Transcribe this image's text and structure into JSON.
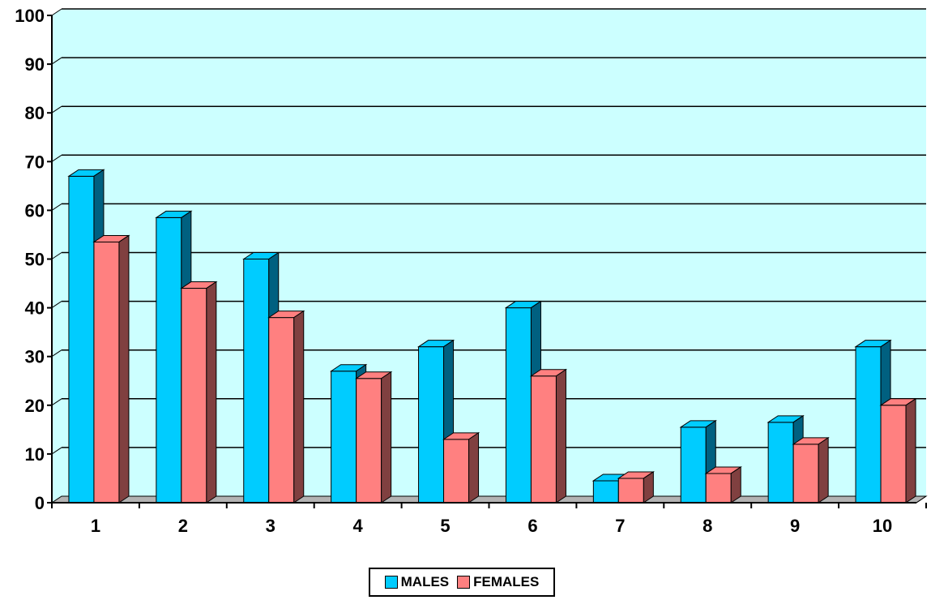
{
  "chart_data": {
    "type": "bar",
    "style": "3d-clustered-column",
    "categories": [
      "1",
      "2",
      "3",
      "4",
      "5",
      "6",
      "7",
      "8",
      "9",
      "10"
    ],
    "series": [
      {
        "name": "MALES",
        "values": [
          67,
          58.5,
          50,
          27,
          32,
          40,
          4.5,
          15.5,
          16.5,
          32
        ]
      },
      {
        "name": "FEMALES",
        "values": [
          53.5,
          44,
          38,
          25.5,
          13,
          26,
          5,
          6,
          12,
          20
        ]
      }
    ],
    "ylim": [
      0,
      100
    ],
    "yticks": [
      0,
      10,
      20,
      30,
      40,
      50,
      60,
      70,
      80,
      90,
      100
    ],
    "grid": true,
    "legend_position": "bottom",
    "colors": {
      "plot_background": "#ccffff",
      "floor": "#b3b3b3",
      "males_front": "#00ccff",
      "males_side": "#006080",
      "females_front": "#ff8080",
      "females_side": "#804040"
    }
  }
}
